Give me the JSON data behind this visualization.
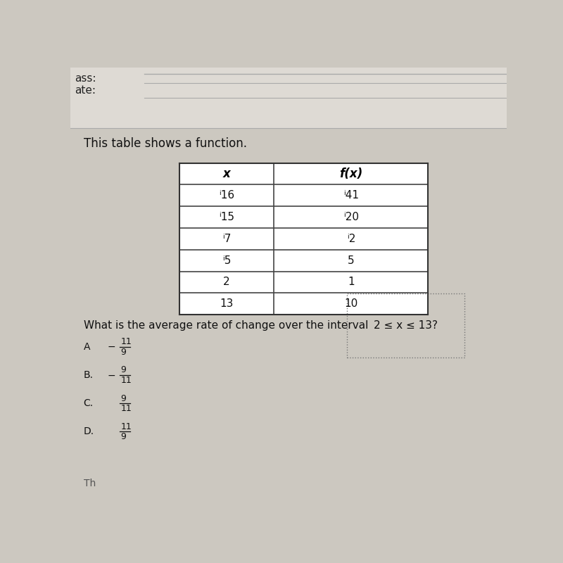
{
  "bg_color": "#ccc8c0",
  "header_bg_color": "#dedad4",
  "table_bg_color": "#f0eeea",
  "white": "#ffffff",
  "section_title": "This table shows a function.",
  "table_x_values": [
    "ⁱ16",
    "ⁱ15",
    "ⁱ7",
    "ⁱ5",
    "2",
    "13"
  ],
  "table_fx_values": [
    "ⁱ41",
    "ⁱ20",
    "ⁱ2",
    "5",
    "1",
    "10"
  ],
  "table_col_headers": [
    "x",
    "f(x)"
  ],
  "question_text": "What is the average rate of change over the interval ",
  "question_interval": "2 ≤ x ≤ 13?",
  "choices": [
    "A",
    "B.",
    "C.",
    "D."
  ],
  "choice_numerators": [
    "11",
    "9",
    "9",
    "11"
  ],
  "choice_denominators": [
    "9",
    "11",
    "11",
    "9"
  ],
  "choice_signs": [
    "−",
    "−",
    "",
    ""
  ],
  "font_size_header": 11,
  "font_size_title": 12,
  "font_size_table": 11,
  "font_size_question": 11,
  "font_size_choices": 10
}
